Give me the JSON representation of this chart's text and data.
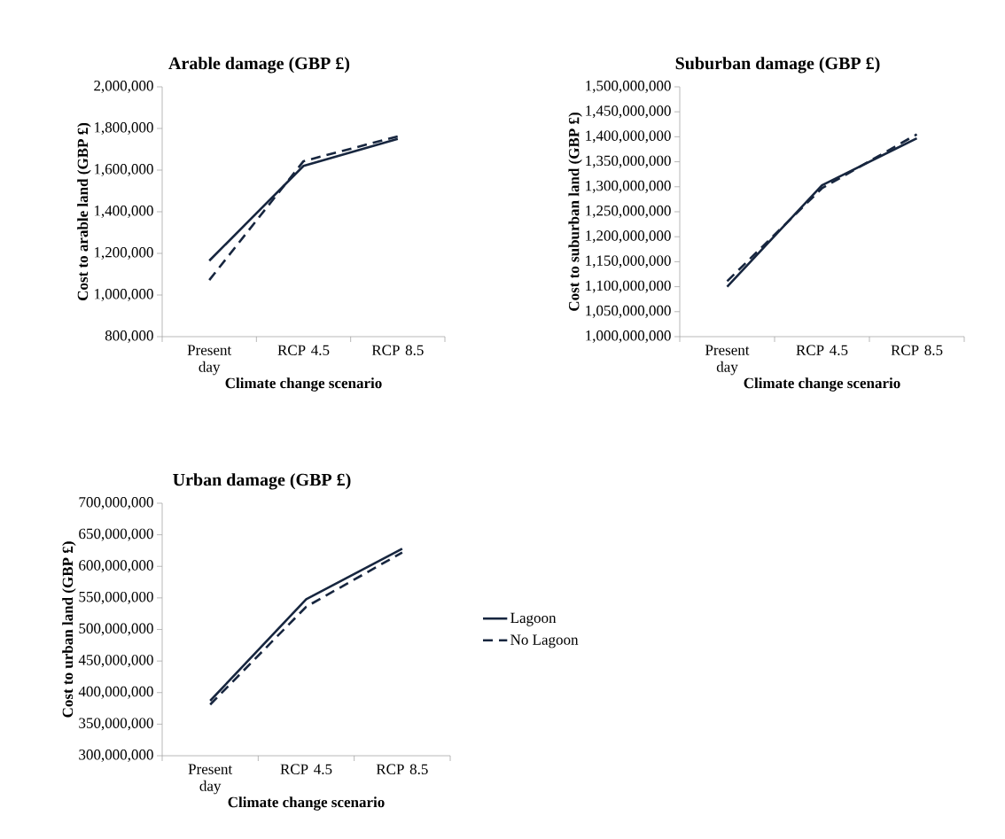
{
  "chart_data": [
    {
      "type": "line",
      "title": "Arable damage (GBP £)",
      "xlabel": "Climate change scenario",
      "ylabel": "Cost to arable land (GBP £)",
      "categories": [
        "Present day",
        "RCP 4.5",
        "RCP 8.5"
      ],
      "series": [
        {
          "color": "#17263f",
          "line_style": "solid",
          "values": [
            1165000,
            1620000,
            1750000
          ]
        },
        {
          "color": "#17263f",
          "line_style": "dashed",
          "values": [
            1072000,
            1643000,
            1762000
          ]
        }
      ],
      "ylim": [
        800000,
        2000000
      ],
      "yticks": [
        {
          "value": 800000,
          "label": "800,000"
        },
        {
          "value": 1000000,
          "label": "1,000,000"
        },
        {
          "value": 1200000,
          "label": "1,200,000"
        },
        {
          "value": 1400000,
          "label": "1,400,000"
        },
        {
          "value": 1600000,
          "label": "1,600,000"
        },
        {
          "value": 1800000,
          "label": "1,800,000"
        },
        {
          "value": 2000000,
          "label": "2,000,000"
        }
      ]
    },
    {
      "type": "line",
      "title": "Suburban damage (GBP £)",
      "xlabel": "Climate change scenario",
      "ylabel": "Cost to suburban land (GBP £)",
      "categories": [
        "Present day",
        "RCP 4.5",
        "RCP 8.5"
      ],
      "series": [
        {
          "color": "#17263f",
          "line_style": "solid",
          "values": [
            1100000000,
            1303000000,
            1397000000
          ]
        },
        {
          "color": "#17263f",
          "line_style": "dashed",
          "values": [
            1111000000,
            1297000000,
            1405000000
          ]
        }
      ],
      "ylim": [
        1000000000,
        1500000000
      ],
      "yticks": [
        {
          "value": 1000000000,
          "label": "1,000,000,000"
        },
        {
          "value": 1050000000,
          "label": "1,050,000,000"
        },
        {
          "value": 1100000000,
          "label": "1,100,000,000"
        },
        {
          "value": 1150000000,
          "label": "1,150,000,000"
        },
        {
          "value": 1200000000,
          "label": "1,200,000,000"
        },
        {
          "value": 1250000000,
          "label": "1,250,000,000"
        },
        {
          "value": 1300000000,
          "label": "1,300,000,000"
        },
        {
          "value": 1350000000,
          "label": "1,350,000,000"
        },
        {
          "value": 1400000000,
          "label": "1,400,000,000"
        },
        {
          "value": 1450000000,
          "label": "1,450,000,000"
        },
        {
          "value": 1500000000,
          "label": "1,500,000,000"
        }
      ]
    },
    {
      "type": "line",
      "title": "Urban damage (GBP £)",
      "xlabel": "Climate change scenario",
      "ylabel": "Cost to urban land (GBP £)",
      "categories": [
        "Present day",
        "RCP 4.5",
        "RCP 8.5"
      ],
      "series": [
        {
          "name": "Lagoon",
          "color": "#17263f",
          "line_style": "solid",
          "values": [
            387000000,
            548000000,
            628000000
          ]
        },
        {
          "name": "No Lagoon",
          "color": "#17263f",
          "line_style": "dashed",
          "values": [
            381000000,
            536000000,
            622000000
          ]
        }
      ],
      "ylim": [
        300000000,
        700000000
      ],
      "yticks": [
        {
          "value": 300000000,
          "label": "300,000,000"
        },
        {
          "value": 350000000,
          "label": "350,000,000"
        },
        {
          "value": 400000000,
          "label": "400,000,000"
        },
        {
          "value": 450000000,
          "label": "450,000,000"
        },
        {
          "value": 500000000,
          "label": "500,000,000"
        },
        {
          "value": 550000000,
          "label": "550,000,000"
        },
        {
          "value": 600000000,
          "label": "600,000,000"
        },
        {
          "value": 650000000,
          "label": "650,000,000"
        },
        {
          "value": 700000000,
          "label": "700,000,000"
        }
      ],
      "legend": "right"
    }
  ]
}
